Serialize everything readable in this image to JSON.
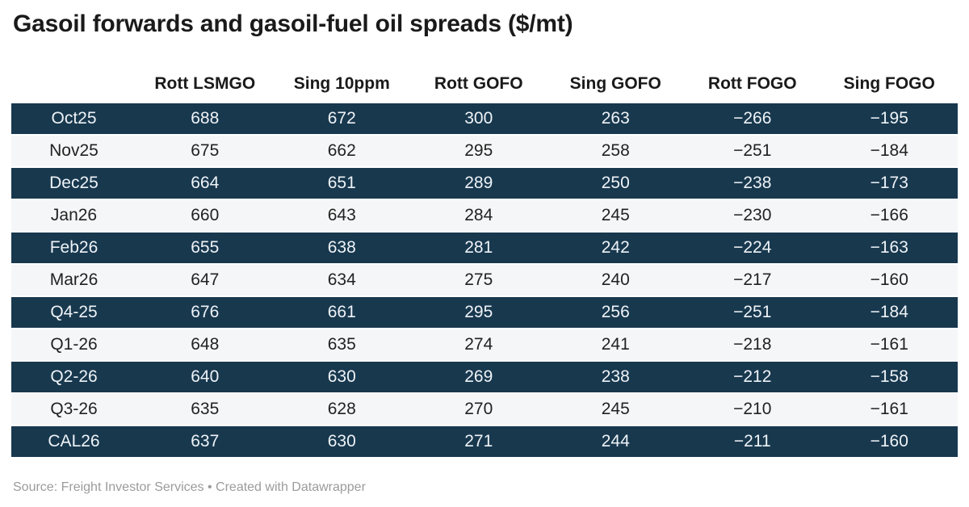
{
  "title": "Gasoil forwards and gasoil-fuel oil spreads ($/mt)",
  "chart_data": {
    "type": "table",
    "title": "Gasoil forwards and gasoil-fuel oil spreads ($/mt)",
    "columns": [
      "",
      "Rott LSMGO",
      "Sing 10ppm",
      "Rott GOFO",
      "Sing GOFO",
      "Rott FOGO",
      "Sing FOGO"
    ],
    "rows": [
      {
        "label": "Oct25",
        "values": [
          688,
          672,
          300,
          263,
          -266,
          -195
        ]
      },
      {
        "label": "Nov25",
        "values": [
          675,
          662,
          295,
          258,
          -251,
          -184
        ]
      },
      {
        "label": "Dec25",
        "values": [
          664,
          651,
          289,
          250,
          -238,
          -173
        ]
      },
      {
        "label": "Jan26",
        "values": [
          660,
          643,
          284,
          245,
          -230,
          -166
        ]
      },
      {
        "label": "Feb26",
        "values": [
          655,
          638,
          281,
          242,
          -224,
          -163
        ]
      },
      {
        "label": "Mar26",
        "values": [
          647,
          634,
          275,
          240,
          -217,
          -160
        ]
      },
      {
        "label": "Q4-25",
        "values": [
          676,
          661,
          295,
          256,
          -251,
          -184
        ]
      },
      {
        "label": "Q1-26",
        "values": [
          648,
          635,
          274,
          241,
          -218,
          -161
        ]
      },
      {
        "label": "Q2-26",
        "values": [
          640,
          630,
          269,
          238,
          -212,
          -158
        ]
      },
      {
        "label": "Q3-26",
        "values": [
          635,
          628,
          270,
          245,
          -210,
          -161
        ]
      },
      {
        "label": "CAL26",
        "values": [
          637,
          630,
          271,
          244,
          -211,
          -160
        ]
      }
    ],
    "row_stripe_pattern": "odd rows dark navy, even rows light gray",
    "legend_position": "none",
    "grid": false
  },
  "footer": {
    "source": "Source: Freight Investor Services • Created with Datawrapper"
  },
  "colors": {
    "dark_row_bg": "#18384e",
    "light_row_bg": "#f5f6f7",
    "dark_row_text": "#eef3f7",
    "light_row_text": "#222222",
    "header_text": "#1a1a1a",
    "footer_text": "#9b9b9b"
  }
}
